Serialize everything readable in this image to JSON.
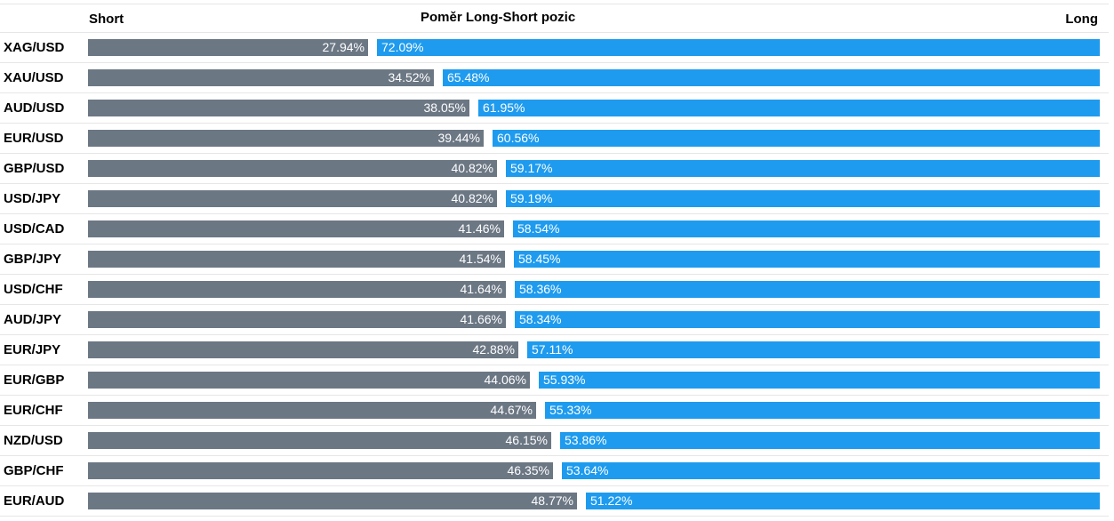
{
  "chart_data": {
    "type": "bar",
    "title": "Poměr Long-Short pozic",
    "left_label": "Short",
    "right_label": "Long",
    "colors": {
      "short": "#6c7784",
      "long": "#1e9bee"
    },
    "series": [
      {
        "name": "Short",
        "values": [
          27.94,
          34.52,
          38.05,
          39.44,
          40.82,
          40.82,
          41.46,
          41.54,
          41.64,
          41.66,
          42.88,
          44.06,
          44.67,
          46.15,
          46.35,
          48.77
        ]
      },
      {
        "name": "Long",
        "values": [
          72.09,
          65.48,
          61.95,
          60.56,
          59.17,
          59.19,
          58.54,
          58.45,
          58.36,
          58.34,
          57.11,
          55.93,
          55.33,
          53.86,
          53.64,
          51.22
        ]
      }
    ],
    "rows": [
      {
        "pair": "XAG/USD",
        "short": "27.94%",
        "long": "72.09%"
      },
      {
        "pair": "XAU/USD",
        "short": "34.52%",
        "long": "65.48%"
      },
      {
        "pair": "AUD/USD",
        "short": "38.05%",
        "long": "61.95%"
      },
      {
        "pair": "EUR/USD",
        "short": "39.44%",
        "long": "60.56%"
      },
      {
        "pair": "GBP/USD",
        "short": "40.82%",
        "long": "59.17%"
      },
      {
        "pair": "USD/JPY",
        "short": "40.82%",
        "long": "59.19%"
      },
      {
        "pair": "USD/CAD",
        "short": "41.46%",
        "long": "58.54%"
      },
      {
        "pair": "GBP/JPY",
        "short": "41.54%",
        "long": "58.45%"
      },
      {
        "pair": "USD/CHF",
        "short": "41.64%",
        "long": "58.36%"
      },
      {
        "pair": "AUD/JPY",
        "short": "41.66%",
        "long": "58.34%"
      },
      {
        "pair": "EUR/JPY",
        "short": "42.88%",
        "long": "57.11%"
      },
      {
        "pair": "EUR/GBP",
        "short": "44.06%",
        "long": "55.93%"
      },
      {
        "pair": "EUR/CHF",
        "short": "44.67%",
        "long": "55.33%"
      },
      {
        "pair": "NZD/USD",
        "short": "46.15%",
        "long": "53.86%"
      },
      {
        "pair": "GBP/CHF",
        "short": "46.35%",
        "long": "53.64%"
      },
      {
        "pair": "EUR/AUD",
        "short": "48.77%",
        "long": "51.22%"
      }
    ]
  }
}
